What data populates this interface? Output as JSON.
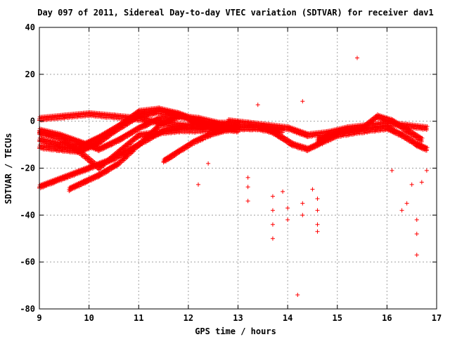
{
  "chart_data": {
    "type": "scatter",
    "title": "Day 097 of 2011, Sidereal Day-to-day VTEC variation (SDTVAR) for receiver dav1",
    "xlabel": "GPS time / hours",
    "ylabel": "SDTVAR / TECUs",
    "xlim": [
      9,
      17
    ],
    "ylim": [
      -80,
      40
    ],
    "xticks": [
      9,
      10,
      11,
      12,
      13,
      14,
      15,
      16,
      17
    ],
    "yticks": [
      -80,
      -60,
      -40,
      -20,
      0,
      20,
      40
    ],
    "xtick_labels": [
      "9",
      "10",
      "11",
      "12",
      "13",
      "14",
      "15",
      "16",
      "17"
    ],
    "ytick_labels": [
      "-80",
      "-60",
      "-40",
      "-20",
      "0",
      "20",
      "40"
    ],
    "grid": true,
    "marker": "+",
    "color": "#ff0000",
    "bands": [
      {
        "name": "track-1",
        "x": [
          9.0,
          9.5,
          10.0,
          10.5,
          11.0,
          11.5,
          12.0,
          12.5,
          13.0
        ],
        "y": [
          1,
          2,
          3,
          2,
          1,
          -1,
          -2,
          -1,
          -2
        ]
      },
      {
        "name": "track-2",
        "x": [
          9.0,
          9.4,
          9.8,
          10.2,
          10.6,
          11.0,
          11.4,
          11.8,
          12.2,
          12.6,
          13.0
        ],
        "y": [
          -4,
          -6,
          -9,
          -12,
          -8,
          -3,
          1,
          2,
          1,
          -1,
          -1
        ]
      },
      {
        "name": "track-3",
        "x": [
          9.0,
          9.4,
          9.8,
          10.2,
          10.6,
          11.0,
          11.4,
          11.8,
          12.2,
          12.6
        ],
        "y": [
          -8,
          -10,
          -11,
          -7,
          -2,
          4,
          5,
          3,
          0,
          -2
        ]
      },
      {
        "name": "track-4",
        "x": [
          9.0,
          9.4,
          9.8,
          10.2,
          10.6,
          11.0,
          11.4,
          11.8,
          12.2,
          12.6,
          13.0
        ],
        "y": [
          -11,
          -12,
          -13,
          -9,
          -3,
          2,
          4,
          3,
          -1,
          -3,
          -4
        ]
      },
      {
        "name": "track-5",
        "x": [
          9.0,
          9.5,
          10.0,
          10.5,
          11.0,
          11.5,
          12.0,
          12.5,
          13.0
        ],
        "y": [
          -28,
          -24,
          -20,
          -16,
          -10,
          -4,
          -2,
          -3,
          -4
        ]
      },
      {
        "name": "track-6",
        "x": [
          9.0,
          9.4,
          9.8,
          10.2,
          10.6,
          11.0,
          11.4,
          11.8,
          12.2,
          12.6,
          13.0,
          13.4,
          13.8
        ],
        "y": [
          -5,
          -7,
          -13,
          -20,
          -13,
          -6,
          -5,
          -4,
          -4,
          -3,
          -3,
          -3,
          -5
        ]
      },
      {
        "name": "track-7",
        "x": [
          9.6,
          9.9,
          10.2,
          10.6,
          11.0,
          11.4,
          11.8
        ],
        "y": [
          -29,
          -26,
          -23,
          -18,
          -10,
          -2,
          2
        ]
      },
      {
        "name": "track-8",
        "x": [
          11.5,
          11.8,
          12.1,
          12.4,
          12.7,
          13.0,
          13.3,
          13.6,
          13.9
        ],
        "y": [
          -17,
          -13,
          -9,
          -6,
          -4,
          -3,
          -3,
          -3,
          -4
        ]
      },
      {
        "name": "track-9",
        "x": [
          12.8,
          13.2,
          13.6,
          14.0,
          14.4,
          14.8,
          15.2,
          15.6,
          16.0,
          16.4,
          16.8
        ],
        "y": [
          0,
          -1,
          -2,
          -3,
          -6,
          -5,
          -3,
          -2,
          -1,
          -2,
          -3
        ]
      },
      {
        "name": "track-10",
        "x": [
          13.5,
          13.8,
          14.1,
          14.4,
          14.7,
          15.0,
          15.3,
          15.6,
          16.0,
          16.3,
          16.6,
          16.8
        ],
        "y": [
          -2,
          -6,
          -10,
          -12,
          -9,
          -6,
          -5,
          -4,
          -3,
          -6,
          -10,
          -12
        ]
      },
      {
        "name": "track-11",
        "x": [
          14.6,
          14.9,
          15.2,
          15.5,
          15.8,
          16.1,
          16.4,
          16.7
        ],
        "y": [
          -8,
          -6,
          -4,
          -3,
          2,
          0,
          -4,
          -8
        ]
      }
    ],
    "scattered_points": [
      {
        "x": 15.4,
        "y": 27
      },
      {
        "x": 14.3,
        "y": 8.5
      },
      {
        "x": 13.4,
        "y": 7
      },
      {
        "x": 12.2,
        "y": -27
      },
      {
        "x": 13.2,
        "y": -34
      },
      {
        "x": 13.2,
        "y": -28
      },
      {
        "x": 13.2,
        "y": -24
      },
      {
        "x": 13.7,
        "y": -50
      },
      {
        "x": 13.7,
        "y": -44
      },
      {
        "x": 13.7,
        "y": -38
      },
      {
        "x": 13.7,
        "y": -32
      },
      {
        "x": 13.9,
        "y": -30
      },
      {
        "x": 14.0,
        "y": -42
      },
      {
        "x": 14.0,
        "y": -37
      },
      {
        "x": 14.2,
        "y": -74
      },
      {
        "x": 14.3,
        "y": -40
      },
      {
        "x": 14.3,
        "y": -35
      },
      {
        "x": 14.6,
        "y": -47
      },
      {
        "x": 14.6,
        "y": -44
      },
      {
        "x": 14.6,
        "y": -38
      },
      {
        "x": 14.6,
        "y": -33
      },
      {
        "x": 14.5,
        "y": -29
      },
      {
        "x": 16.3,
        "y": -38
      },
      {
        "x": 16.4,
        "y": -35
      },
      {
        "x": 16.6,
        "y": -42
      },
      {
        "x": 16.6,
        "y": -48
      },
      {
        "x": 16.6,
        "y": -57
      },
      {
        "x": 16.5,
        "y": -27
      },
      {
        "x": 16.1,
        "y": -21
      },
      {
        "x": 16.8,
        "y": -21
      },
      {
        "x": 16.7,
        "y": -26
      },
      {
        "x": 12.4,
        "y": -18
      }
    ]
  }
}
